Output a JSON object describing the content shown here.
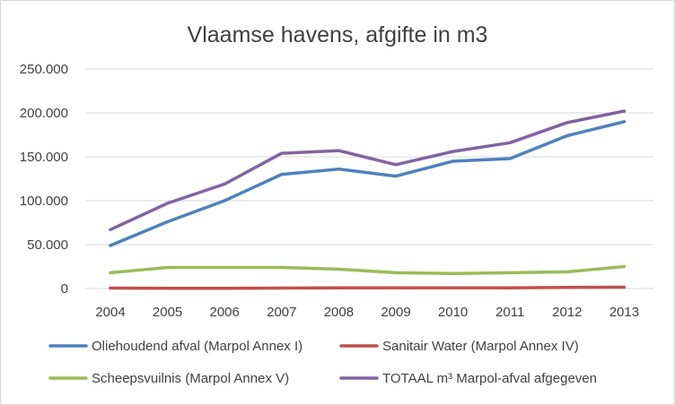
{
  "chart_data": {
    "type": "line",
    "title": "Vlaamse havens, afgifte in m3",
    "xlabel": "",
    "ylabel": "",
    "categories": [
      "2004",
      "2005",
      "2006",
      "2007",
      "2008",
      "2009",
      "2010",
      "2011",
      "2012",
      "2013"
    ],
    "y_ticks": [
      "0",
      "50.000",
      "100.000",
      "150.000",
      "200.000",
      "250.000"
    ],
    "ylim": [
      0,
      250000
    ],
    "grid": true,
    "legend_position": "bottom",
    "series": [
      {
        "name": "Oliehoudend afval (Marpol Annex I)",
        "color": "#4f81bd",
        "values": [
          49000,
          76000,
          100000,
          130000,
          136000,
          128000,
          145000,
          148000,
          174000,
          190000
        ]
      },
      {
        "name": "Sanitair Water (Marpol Annex IV)",
        "color": "#c0504d",
        "values": [
          500,
          200,
          200,
          500,
          800,
          700,
          700,
          800,
          1200,
          1500
        ]
      },
      {
        "name": "Scheepsvuilnis (Marpol Annex V)",
        "color": "#9bbb59",
        "values": [
          18000,
          24000,
          24000,
          24000,
          22000,
          18000,
          17000,
          18000,
          19000,
          25000
        ]
      },
      {
        "name": "TOTAAL m³  Marpol-afval afgegeven",
        "color": "#8064a2",
        "values": [
          67000,
          97000,
          119000,
          154000,
          157000,
          141000,
          156000,
          166000,
          189000,
          202000
        ]
      }
    ]
  }
}
